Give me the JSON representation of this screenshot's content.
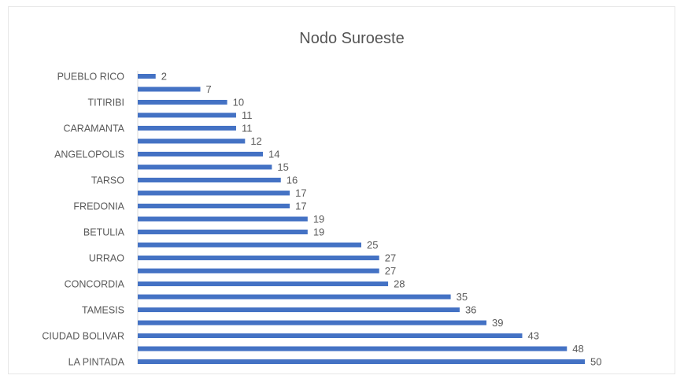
{
  "chart_data": {
    "type": "bar",
    "orientation": "horizontal",
    "title": "Nodo Suroeste",
    "xlabel": "",
    "ylabel": "",
    "color": "#4472c4",
    "categories": [
      "PUEBLO RICO",
      "",
      "TITIRIBI",
      "",
      "CARAMANTA",
      "",
      "ANGELOPOLIS",
      "",
      "TARSO",
      "",
      "FREDONIA",
      "",
      "BETULIA",
      "",
      "URRAO",
      "",
      "CONCORDIA",
      "",
      "TAMESIS",
      "",
      "CIUDAD BOLIVAR",
      "",
      "LA PINTADA"
    ],
    "values": [
      2,
      7,
      10,
      11,
      11,
      12,
      14,
      15,
      16,
      17,
      17,
      19,
      19,
      25,
      27,
      27,
      28,
      35,
      36,
      39,
      43,
      48,
      50
    ],
    "xlim": [
      0,
      50
    ],
    "grid": false,
    "legend": "none",
    "data_labels": true
  }
}
